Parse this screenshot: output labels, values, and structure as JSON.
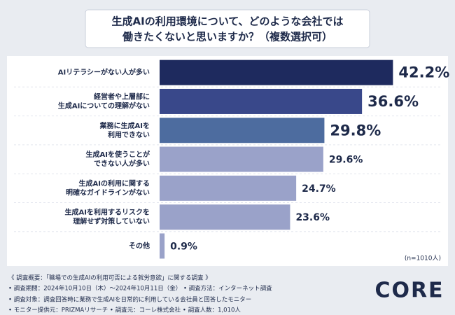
{
  "chart_data": {
    "type": "bar",
    "orientation": "horizontal",
    "title": [
      "生成AIの利用環境について、どのような会社では",
      "働きたくないと思いますか？（複数選択可）"
    ],
    "categories": [
      [
        "AIリテラシーがない人が多い"
      ],
      [
        "経営者や上層部に",
        "生成AIについての理解がない"
      ],
      [
        "業務に生成AIを",
        "利用できない"
      ],
      [
        "生成AIを使うことが",
        "できない人が多い"
      ],
      [
        "生成AIの利用に関する",
        "明確なガイドラインがない"
      ],
      [
        "生成AIを利用するリスクを",
        "理解せず対策していない"
      ],
      [
        "その他"
      ]
    ],
    "values": [
      42.2,
      36.6,
      29.8,
      29.6,
      24.7,
      23.6,
      0.9
    ],
    "value_labels": [
      "42.2%",
      "36.6%",
      "29.8%",
      "29.6%",
      "24.7%",
      "23.6%",
      "0.9%"
    ],
    "colors": [
      "#1e2a5e",
      "#39488a",
      "#4d6c9f",
      "#9aa2c9",
      "#9aa2c9",
      "#9aa2c9",
      "#9aa2c9"
    ],
    "xlim": [
      0,
      50
    ],
    "note": "(n=1010人)"
  },
  "footer": {
    "lines": [
      "《 調査概要：「職場での生成AIの利用可否による就労意欲」に関する調査 》",
      "• 調査期間：2024年10月10日（木）～2024年10月11日（金） • 調査方法：インターネット調査",
      "• 調査対象：調査回答時に業務で生成AIを日常的に利用している会社員と回答したモニター",
      "• モニター提供元：PRIZMAリサーチ • 調査元：コーレ株式会社 • 調査人数：1,010人"
    ],
    "logo": "CORE"
  }
}
